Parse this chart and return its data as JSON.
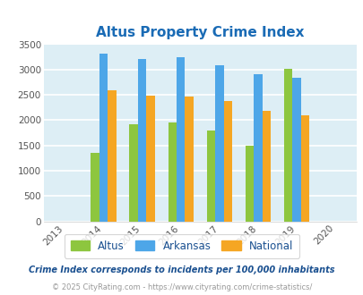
{
  "title": "Altus Property Crime Index",
  "years": [
    2013,
    2014,
    2015,
    2016,
    2017,
    2018,
    2019,
    2020
  ],
  "categories": [
    "Altus",
    "Arkansas",
    "National"
  ],
  "values": {
    "Altus": [
      0,
      1350,
      1920,
      1950,
      1800,
      1490,
      3020,
      0
    ],
    "Arkansas": [
      0,
      3310,
      3210,
      3250,
      3080,
      2900,
      2840,
      0
    ],
    "National": [
      0,
      2590,
      2490,
      2470,
      2380,
      2190,
      2090,
      0
    ]
  },
  "colors": {
    "Altus": "#8dc63f",
    "Arkansas": "#4da6e8",
    "National": "#f5a623"
  },
  "ylim": [
    0,
    3500
  ],
  "yticks": [
    0,
    500,
    1000,
    1500,
    2000,
    2500,
    3000,
    3500
  ],
  "background_color": "#ddeef5",
  "note1": "Crime Index corresponds to incidents per 100,000 inhabitants",
  "note2": "© 2025 CityRating.com - https://www.cityrating.com/crime-statistics/",
  "title_color": "#1a6bb5",
  "note1_color": "#1a5090",
  "note2_color": "#999999",
  "legend_text_color": "#1a5090",
  "bar_width": 0.22
}
